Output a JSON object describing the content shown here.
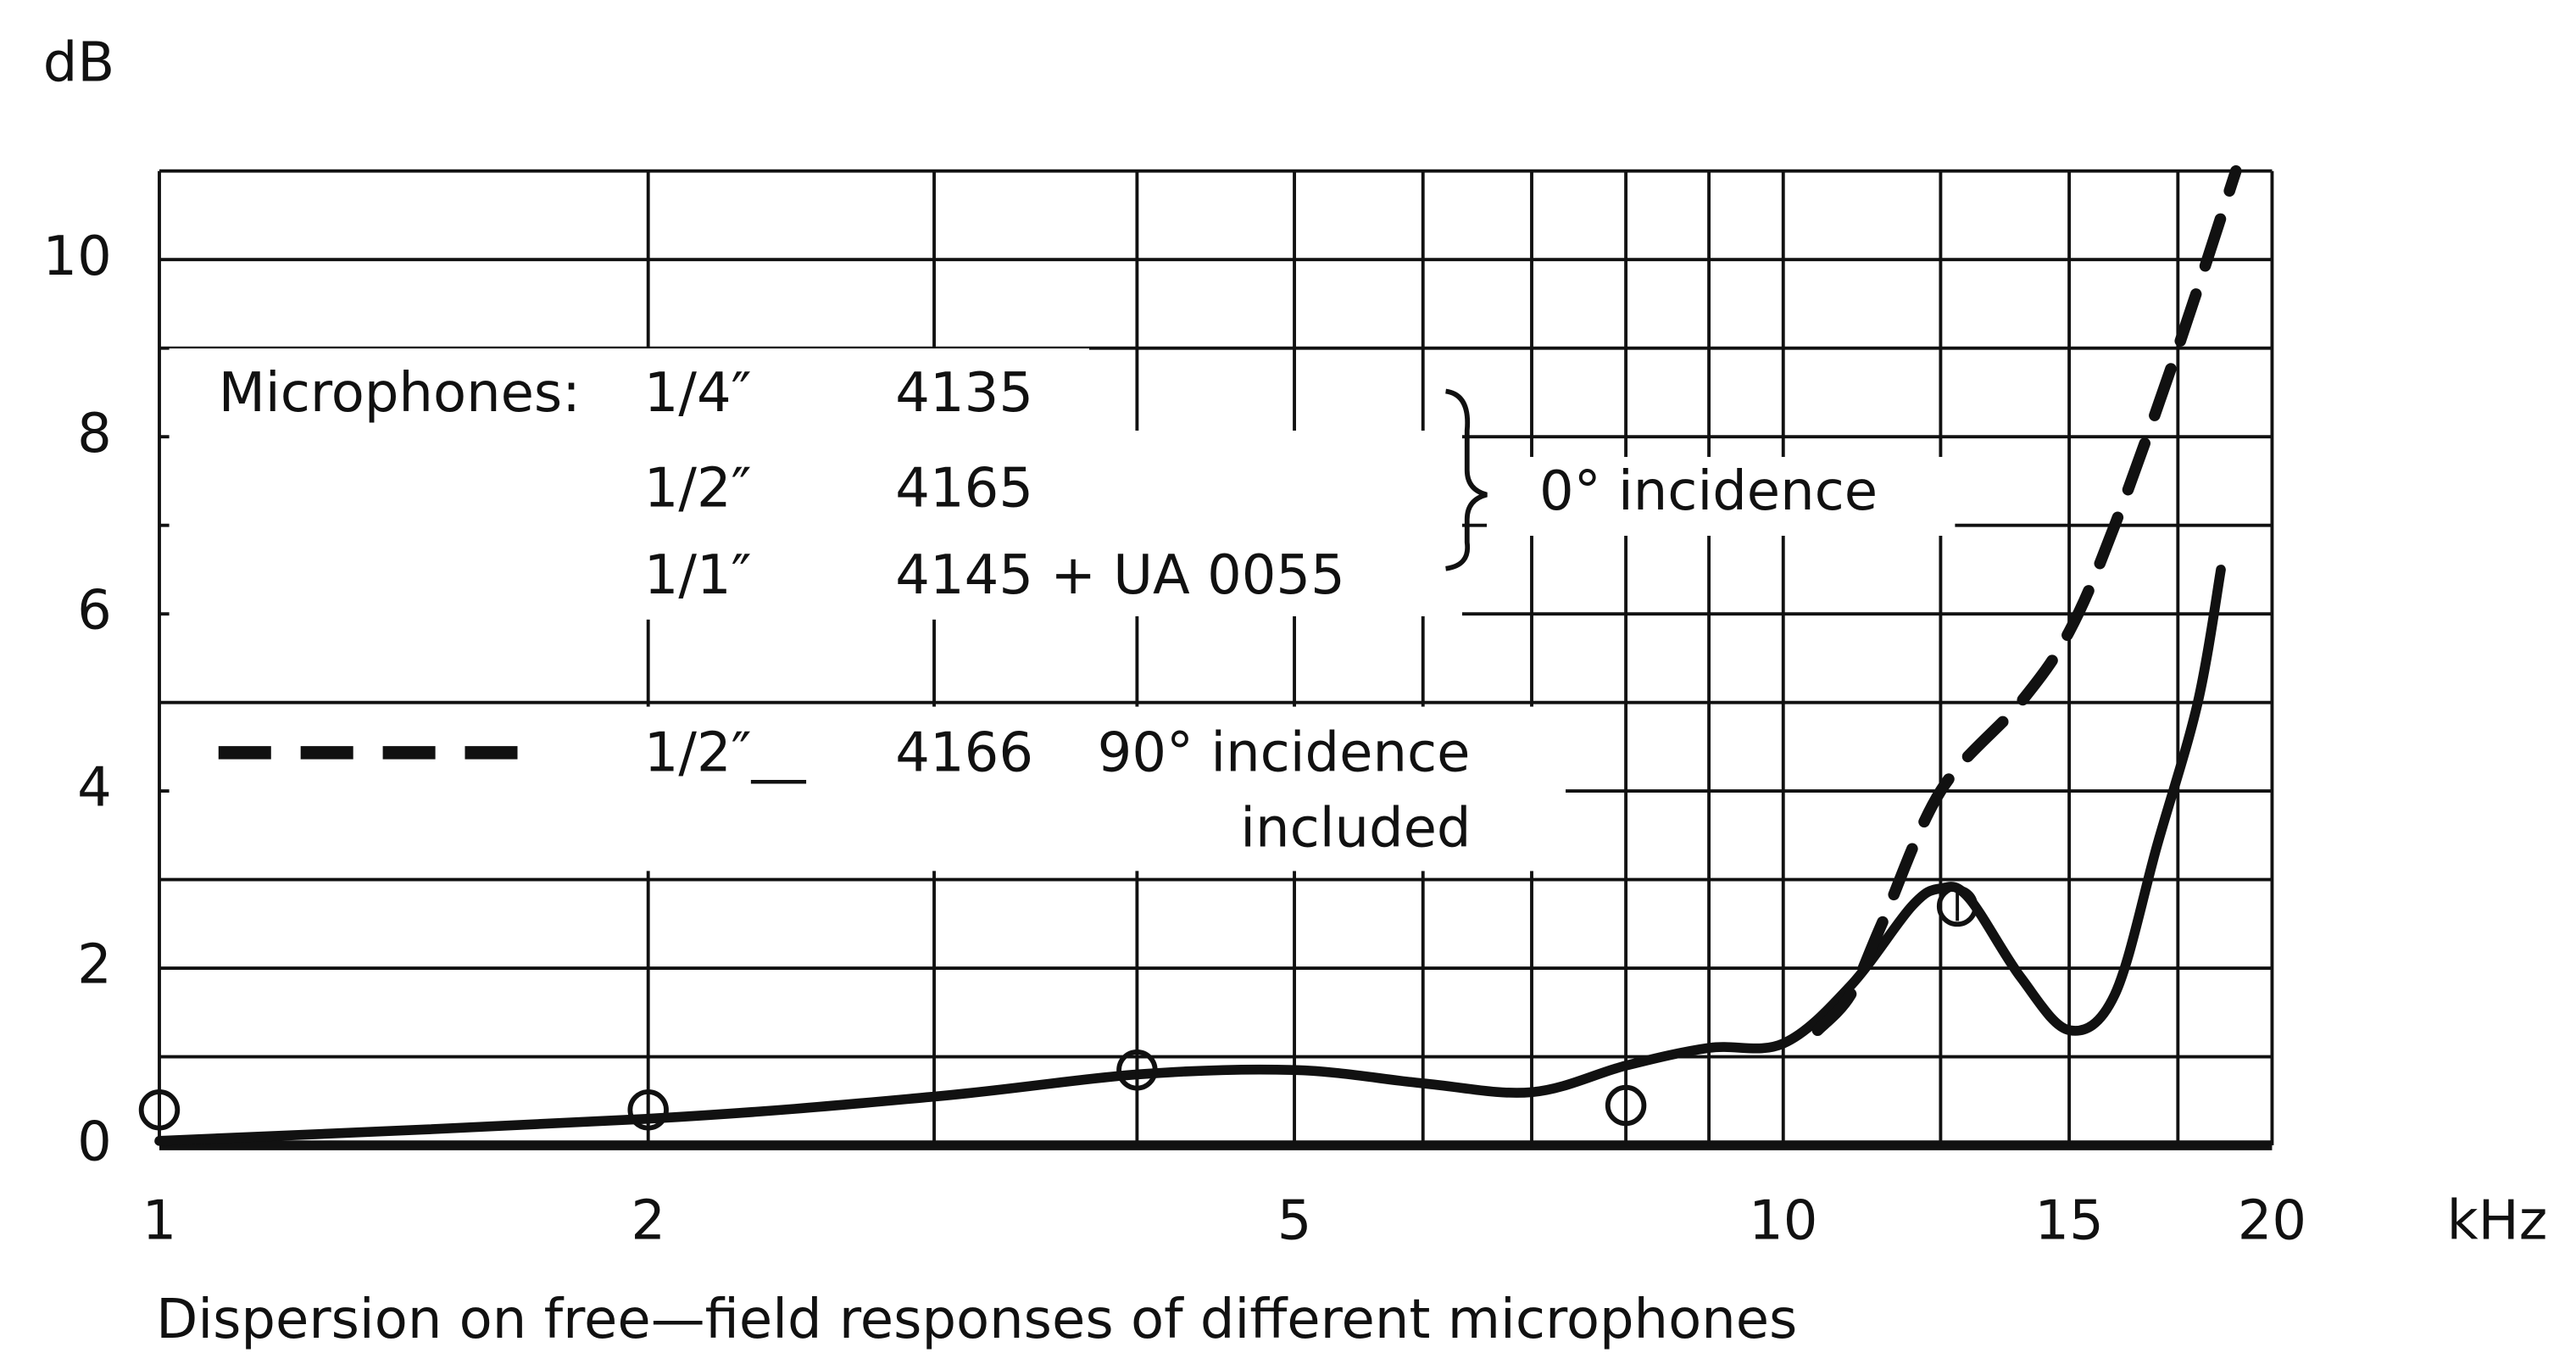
{
  "chart_data": {
    "type": "line",
    "y_label": "dB",
    "x_label": "kHz",
    "caption": "Dispersion on free—field responses of different microphones",
    "log_x": true,
    "grid": true,
    "xlim": [
      1,
      20
    ],
    "ylim": [
      0,
      11
    ],
    "xticks": [
      1,
      2,
      5,
      10,
      15,
      20
    ],
    "yticks": [
      0,
      2,
      4,
      6,
      8,
      10
    ],
    "xgrid": [
      1,
      2,
      3,
      4,
      5,
      6,
      7,
      8,
      9,
      10,
      12.5,
      15,
      17.5,
      20
    ],
    "ygrid": [
      0,
      1,
      2,
      3,
      4,
      5,
      6,
      7,
      8,
      9,
      10,
      11
    ],
    "legend_text": {
      "heading": "Microphones:",
      "size_1": "1/4″",
      "model_1": "4135",
      "size_2": "1/2″",
      "model_2": "4165",
      "size_3": "1/1″",
      "model_3": "4145 + UA 0055",
      "group_0": "0° incidence",
      "size_4": "1/2″__",
      "model_4": "4166",
      "group_90": "90° incidence",
      "group_90b": "included"
    },
    "series": [
      {
        "style": "solid",
        "color": "#111111",
        "x": [
          1,
          2,
          3,
          4,
          5,
          6,
          7,
          8,
          9,
          10,
          11,
          12,
          12.5,
          13,
          14,
          15,
          16,
          17,
          18,
          18.6
        ],
        "values": [
          0.05,
          0.3,
          0.55,
          0.8,
          0.85,
          0.7,
          0.6,
          0.9,
          1.1,
          1.15,
          1.8,
          2.7,
          2.9,
          2.8,
          1.9,
          1.3,
          1.7,
          3.4,
          5.0,
          6.5
        ]
      },
      {
        "style": "dashed",
        "color": "#111111",
        "x": [
          10.5,
          11,
          11.5,
          12.5,
          14,
          15,
          16,
          17.5,
          19
        ],
        "values": [
          1.3,
          1.7,
          2.5,
          4.0,
          5.0,
          5.8,
          7.0,
          9.0,
          11.0
        ]
      },
      {
        "style": "markers",
        "color": "#111111",
        "x": [
          1,
          2,
          4,
          8,
          12.8
        ],
        "values": [
          0.4,
          0.4,
          0.85,
          0.45,
          2.7
        ]
      }
    ]
  }
}
